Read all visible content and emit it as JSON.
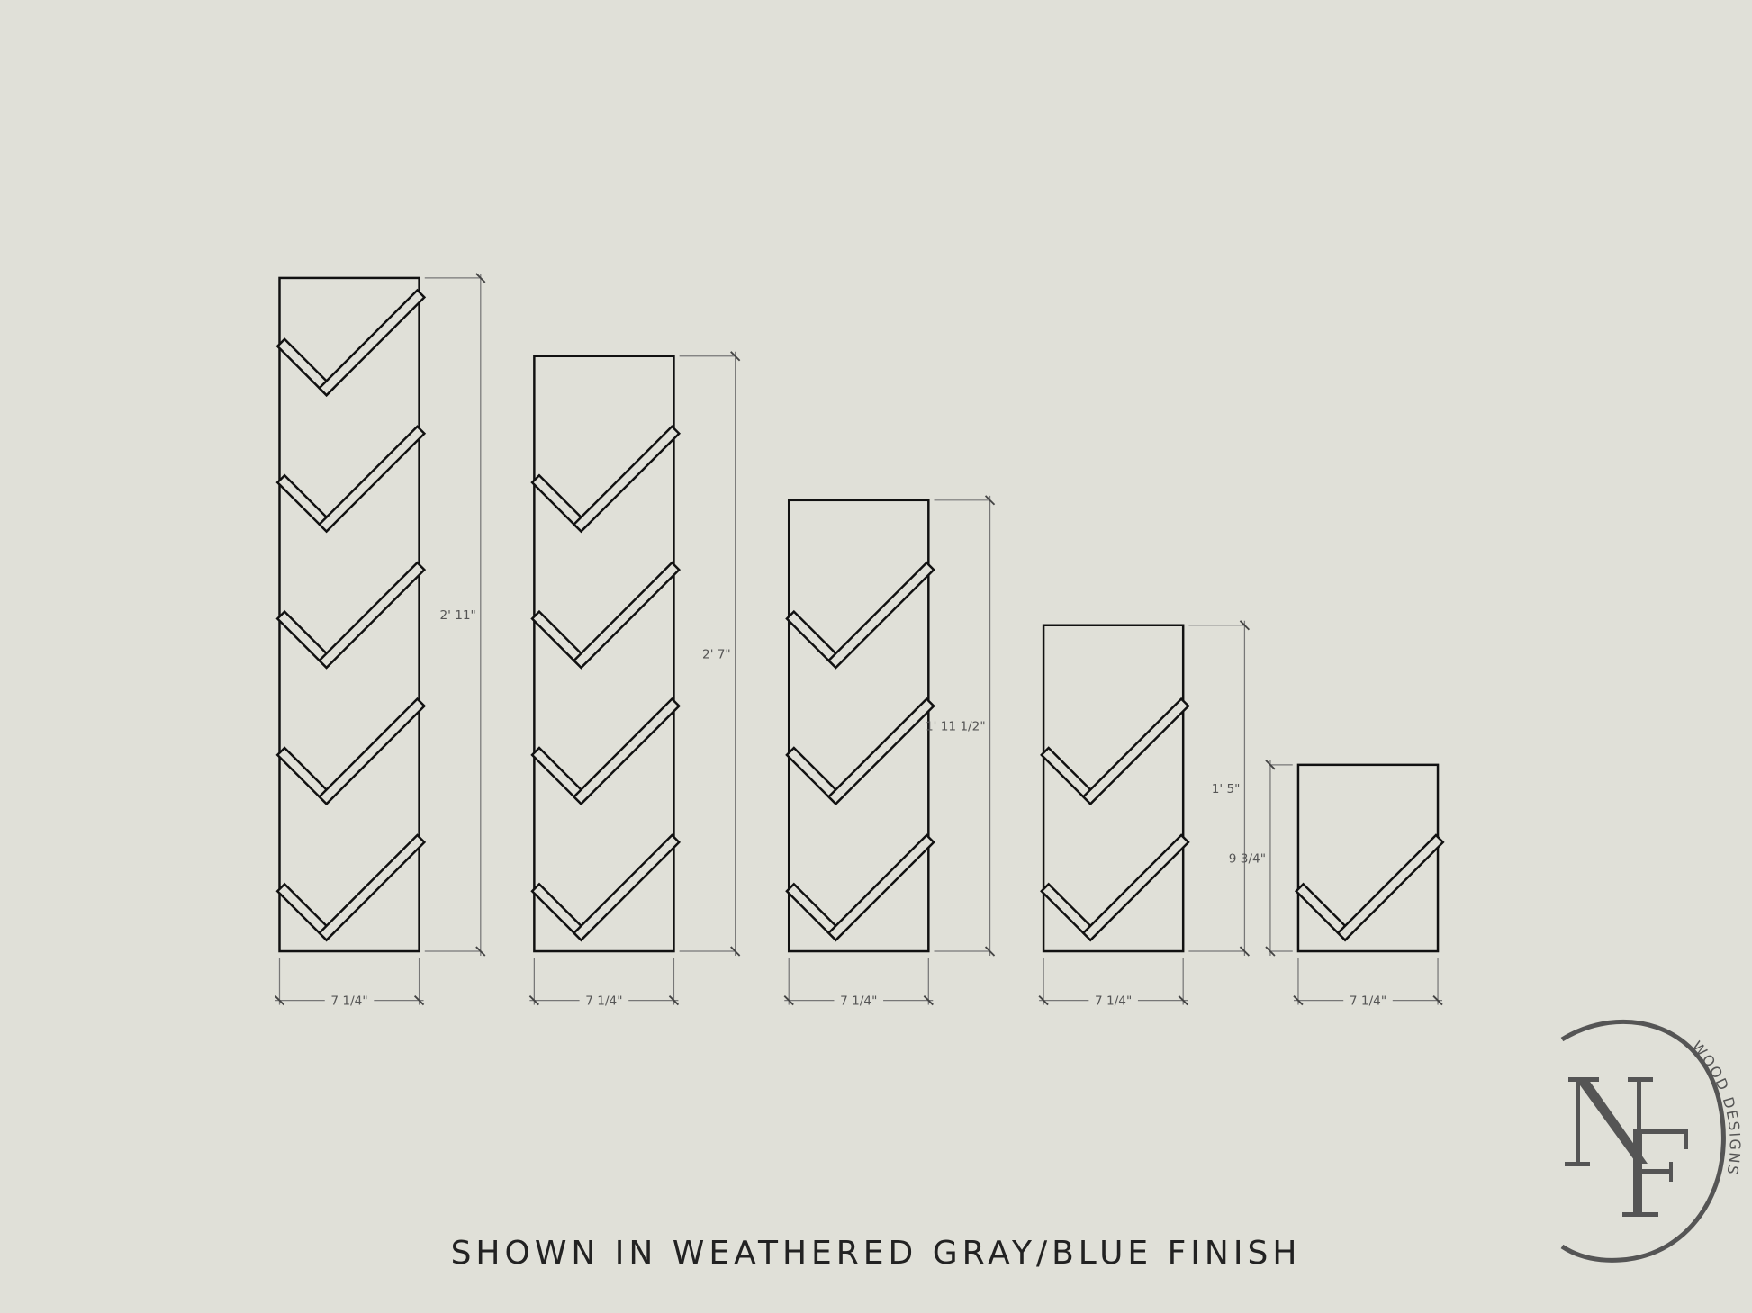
{
  "caption": "SHOWN IN WEATHERED GRAY/BLUE FINISH",
  "colors": {
    "background": "#e0e0d8",
    "line": "#111111",
    "dimension": "#777777",
    "logo": "#555555"
  },
  "racks": [
    {
      "shelves": 5,
      "height_label": "2' 11\"",
      "width_label": "7 1/4\""
    },
    {
      "shelves": 4,
      "height_label": "2' 7\"",
      "width_label": "7 1/4\""
    },
    {
      "shelves": 3,
      "height_label": "1' 11 1/2\"",
      "width_label": "7 1/4\""
    },
    {
      "shelves": 2,
      "height_label": "1' 5\"",
      "width_label": "7 1/4\""
    },
    {
      "shelves": 1,
      "height_label": "9 3/4\"",
      "width_label": "7 1/4\""
    }
  ],
  "logo": {
    "monogram": "NF",
    "text": "WOOD DESIGNS"
  }
}
